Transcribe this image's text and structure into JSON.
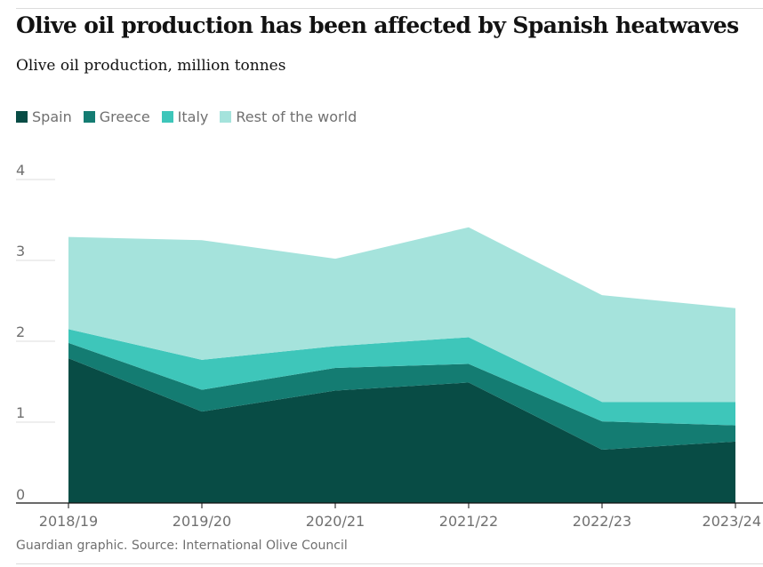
{
  "header": {
    "title": "Olive oil production has been affected by Spanish heatwaves",
    "subtitle": "Olive oil production, million tonnes"
  },
  "footer": {
    "source": "Guardian graphic. Source: International Olive Council"
  },
  "chart_data": {
    "type": "area",
    "stacked": true,
    "title": "Olive oil production has been affected by Spanish heatwaves",
    "subtitle": "Olive oil production, million tonnes",
    "xlabel": "",
    "ylabel": "",
    "categories": [
      "2018/19",
      "2019/20",
      "2020/21",
      "2021/22",
      "2022/23",
      "2023/24"
    ],
    "ylim": [
      0,
      4
    ],
    "yticks": [
      0,
      1,
      2,
      3,
      4
    ],
    "grid": true,
    "legend_position": "top-left",
    "series": [
      {
        "name": "Spain",
        "color": "#084c45",
        "values": [
          1.79,
          1.13,
          1.39,
          1.49,
          0.66,
          0.76
        ]
      },
      {
        "name": "Greece",
        "color": "#147c72",
        "values": [
          0.19,
          0.27,
          0.28,
          0.23,
          0.35,
          0.2
        ]
      },
      {
        "name": "Italy",
        "color": "#3ec6ba",
        "values": [
          0.17,
          0.37,
          0.27,
          0.33,
          0.24,
          0.29
        ]
      },
      {
        "name": "Rest of the world",
        "color": "#a5e3dc",
        "values": [
          1.14,
          1.48,
          1.08,
          1.36,
          1.32,
          1.16
        ]
      }
    ]
  }
}
